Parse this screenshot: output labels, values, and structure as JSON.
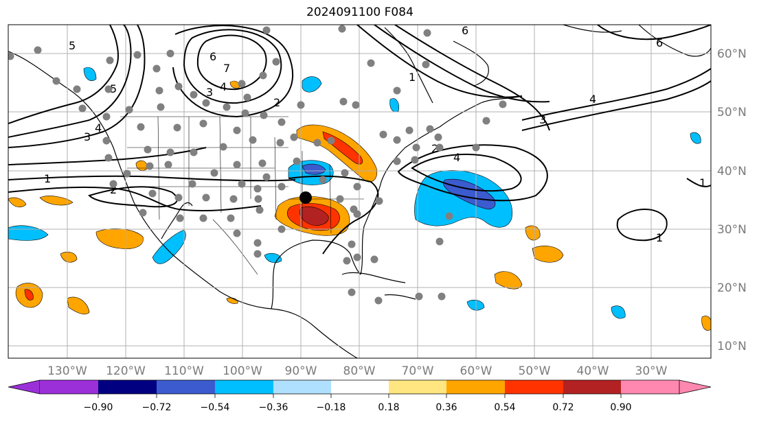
{
  "title": "2024091100 F084",
  "lon_labels": [
    "130°W",
    "120°W",
    "110°W",
    "100°W",
    "90°W",
    "80°W",
    "70°W",
    "60°W",
    "50°W",
    "40°W",
    "30°W"
  ],
  "lat_labels": [
    "60°N",
    "50°N",
    "40°N",
    "30°N",
    "20°N",
    "10°N"
  ],
  "colorbar": {
    "colors": [
      "#9b30d8",
      "#000080",
      "#3b5bcf",
      "#00bfff",
      "#b0e0ff",
      "#ffffff",
      "#ffe680",
      "#ffa500",
      "#ff3300",
      "#b22222",
      "#ff88b0"
    ],
    "ticks": [
      "−0.90",
      "−0.72",
      "−0.54",
      "−0.36",
      "−0.18",
      "0.18",
      "0.36",
      "0.54",
      "0.72",
      "0.90"
    ]
  },
  "contour_labels": [
    "6",
    "4",
    "2",
    "1",
    "3",
    "4",
    "5",
    "6",
    "7",
    "3",
    "1",
    "1",
    "4",
    "2",
    "3",
    "4",
    "5",
    "6",
    "2",
    "1"
  ],
  "marker": {
    "label": "storm-center"
  }
}
